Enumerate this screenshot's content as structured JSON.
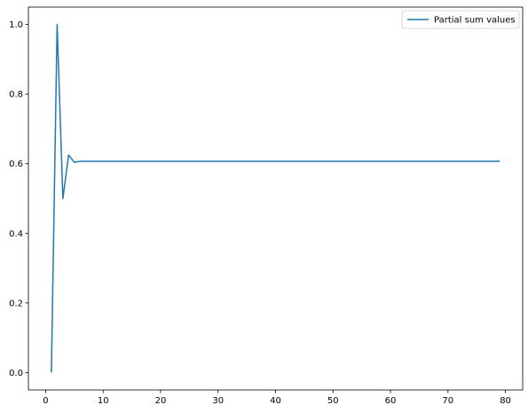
{
  "chart_data": {
    "type": "line",
    "title": "",
    "xlabel": "",
    "ylabel": "",
    "xlim": [
      -3,
      83
    ],
    "ylim": [
      -0.05,
      1.05
    ],
    "xticks": [
      0,
      10,
      20,
      30,
      40,
      50,
      60,
      70,
      80
    ],
    "xtick_labels": [
      "0",
      "10",
      "20",
      "30",
      "40",
      "50",
      "60",
      "70",
      "80"
    ],
    "yticks": [
      0.0,
      0.2,
      0.4,
      0.6,
      0.8,
      1.0
    ],
    "ytick_labels": [
      "0.0",
      "0.2",
      "0.4",
      "0.6",
      "0.8",
      "1.0"
    ],
    "grid": false,
    "legend_position": "top-right",
    "series": [
      {
        "name": "Partial sum values",
        "color": "#1f77b4",
        "x": [
          1,
          2,
          3,
          4,
          5,
          6,
          7,
          8,
          9,
          10,
          11,
          12,
          13,
          14,
          15,
          16,
          17,
          18,
          19,
          20,
          21,
          22,
          23,
          24,
          25,
          26,
          27,
          28,
          29,
          30,
          31,
          32,
          33,
          34,
          35,
          36,
          37,
          38,
          39,
          40,
          41,
          42,
          43,
          44,
          45,
          46,
          47,
          48,
          49,
          50,
          51,
          52,
          53,
          54,
          55,
          56,
          57,
          58,
          59,
          60,
          61,
          62,
          63,
          64,
          65,
          66,
          67,
          68,
          69,
          70,
          71,
          72,
          73,
          74,
          75,
          76,
          77,
          78,
          79
        ],
        "y": [
          0.0,
          1.0,
          0.5,
          0.625,
          0.604,
          0.607,
          0.607,
          0.607,
          0.607,
          0.607,
          0.607,
          0.607,
          0.607,
          0.607,
          0.607,
          0.607,
          0.607,
          0.607,
          0.607,
          0.607,
          0.607,
          0.607,
          0.607,
          0.607,
          0.607,
          0.607,
          0.607,
          0.607,
          0.607,
          0.607,
          0.607,
          0.607,
          0.607,
          0.607,
          0.607,
          0.607,
          0.607,
          0.607,
          0.607,
          0.607,
          0.607,
          0.607,
          0.607,
          0.607,
          0.607,
          0.607,
          0.607,
          0.607,
          0.607,
          0.607,
          0.607,
          0.607,
          0.607,
          0.607,
          0.607,
          0.607,
          0.607,
          0.607,
          0.607,
          0.607,
          0.607,
          0.607,
          0.607,
          0.607,
          0.607,
          0.607,
          0.607,
          0.607,
          0.607,
          0.607,
          0.607,
          0.607,
          0.607,
          0.607,
          0.607,
          0.607,
          0.607,
          0.607,
          0.607
        ]
      }
    ]
  }
}
